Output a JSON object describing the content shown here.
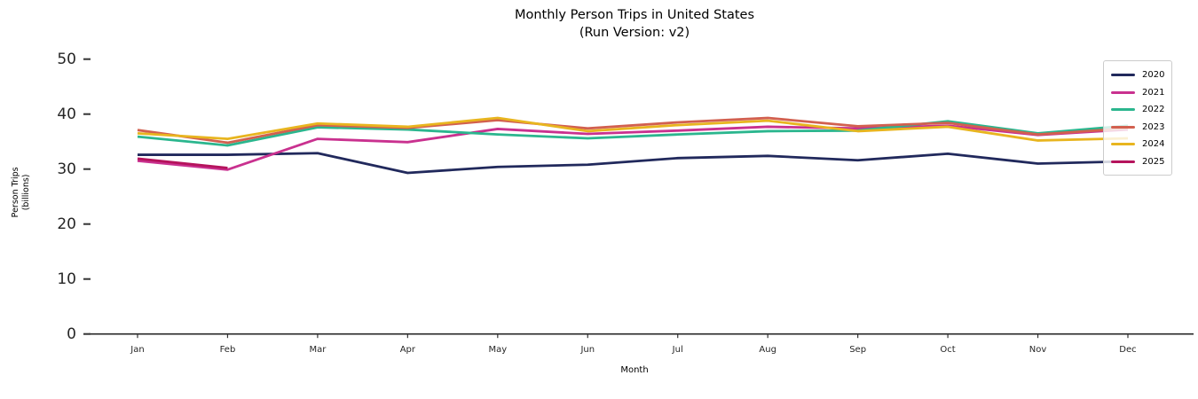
{
  "title": {
    "line1": "Monthly Person Trips in United States",
    "line2": "(Run Version: v2)"
  },
  "axes": {
    "xlabel": "Month",
    "ylabel_line1": "Person Trips",
    "ylabel_line2": "(billions)",
    "yticks": [
      0,
      10,
      20,
      30,
      40,
      50
    ]
  },
  "colors": {
    "axis_line": "#262626",
    "tick_mark": "#333333",
    "legend_border": "#cccccc"
  },
  "chart_data": {
    "type": "line",
    "title": "Monthly Person Trips in United States (Run Version: v2)",
    "xlabel": "Month",
    "ylabel": "Person Trips (billions)",
    "ylim": [
      0,
      52
    ],
    "grid": false,
    "legend_position": "upper right",
    "categories": [
      "Jan",
      "Feb",
      "Mar",
      "Apr",
      "May",
      "Jun",
      "Jul",
      "Aug",
      "Sep",
      "Oct",
      "Nov",
      "Dec"
    ],
    "series": [
      {
        "name": "2020",
        "color": "#21295c",
        "values": [
          32.6,
          32.6,
          32.9,
          29.3,
          30.4,
          30.8,
          32.0,
          32.4,
          31.6,
          32.8,
          31.0,
          31.4
        ]
      },
      {
        "name": "2021",
        "color": "#c9318f",
        "values": [
          31.5,
          29.9,
          35.5,
          34.9,
          37.3,
          36.4,
          37.0,
          37.7,
          37.4,
          37.9,
          36.2,
          37.2
        ]
      },
      {
        "name": "2022",
        "color": "#2bb68e",
        "values": [
          35.9,
          34.3,
          37.6,
          37.2,
          36.3,
          35.6,
          36.3,
          36.9,
          37.0,
          38.7,
          36.5,
          37.9
        ]
      },
      {
        "name": "2023",
        "color": "#d2604f",
        "values": [
          37.1,
          34.8,
          38.0,
          37.5,
          38.9,
          37.4,
          38.5,
          39.3,
          37.8,
          38.4,
          36.3,
          37.4
        ]
      },
      {
        "name": "2024",
        "color": "#e8b51f",
        "values": [
          36.5,
          35.5,
          38.3,
          37.7,
          39.3,
          36.9,
          38.0,
          38.8,
          36.9,
          37.7,
          35.2,
          35.6
        ]
      },
      {
        "name": "2025",
        "color": "#b5135c",
        "values": [
          31.9,
          30.2,
          null,
          null,
          null,
          null,
          null,
          null,
          null,
          null,
          null,
          null
        ]
      }
    ]
  }
}
